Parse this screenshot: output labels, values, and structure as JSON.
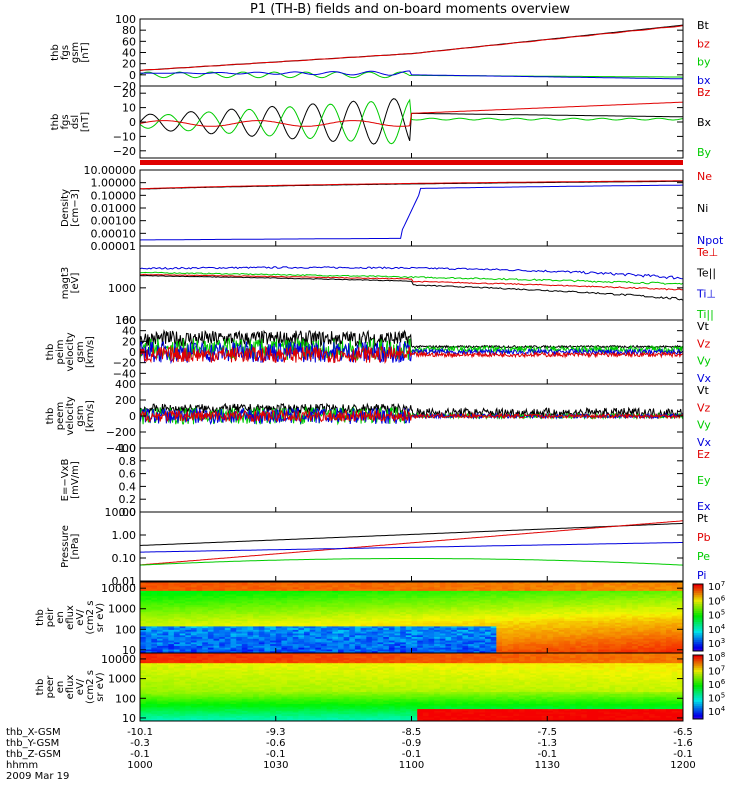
{
  "title": "P1 (TH-B) fields and on-board moments overview",
  "colors": {
    "black": "#000000",
    "red": "#e00000",
    "green": "#00cc00",
    "blue": "#0000dd"
  },
  "chart_data": {
    "type": "line",
    "x_time_labels": [
      "1000",
      "1030",
      "1100",
      "1130",
      "1200"
    ],
    "x_time_minutes": [
      0,
      30,
      60,
      90,
      120
    ],
    "ephemeris": [
      {
        "label": "thb_X-GSM",
        "values": [
          "-10.1",
          "-9.3",
          "-8.5",
          "-7.5",
          "-6.5"
        ]
      },
      {
        "label": "thb_Y-GSM",
        "values": [
          "-0.3",
          "-0.6",
          "-0.9",
          "-1.3",
          "-1.6"
        ]
      },
      {
        "label": "thb_Z-GSM",
        "values": [
          "-0.1",
          "-0.1",
          "-0.1",
          "-0.1",
          "-0.1"
        ]
      },
      {
        "label": "hhmm",
        "values": [
          "1000",
          "1030",
          "1100",
          "1130",
          "1200"
        ]
      }
    ],
    "date": "2009 Mar 19",
    "panels": [
      {
        "id": "fgs-gsm",
        "ylabel": [
          "thb",
          "fgs",
          "gsm",
          "[nT]"
        ],
        "yscale": "linear",
        "ylim": [
          -20,
          100
        ],
        "ticks": [
          {
            "v": 100,
            "t": "100"
          },
          {
            "v": 80,
            "t": "80"
          },
          {
            "v": 60,
            "t": "60"
          },
          {
            "v": 40,
            "t": "40"
          },
          {
            "v": 20,
            "t": "20"
          },
          {
            "v": 0,
            "t": "0"
          },
          {
            "v": -20,
            "t": "−20"
          }
        ],
        "legend": [
          {
            "t": "Bt",
            "c": "black"
          },
          {
            "t": "bz",
            "c": "red"
          },
          {
            "t": "by",
            "c": "green"
          },
          {
            "t": "bx",
            "c": "blue"
          }
        ]
      },
      {
        "id": "fgs-dsl",
        "ylabel": [
          "thb",
          "fgs",
          "dsl",
          "[nT]"
        ],
        "yscale": "linear",
        "ylim": [
          -25,
          25
        ],
        "ticks": [
          {
            "v": 20,
            "t": "20"
          },
          {
            "v": 10,
            "t": "10"
          },
          {
            "v": 0,
            "t": "0"
          },
          {
            "v": -10,
            "t": "−10"
          },
          {
            "v": -20,
            "t": "−20"
          }
        ],
        "legend": [
          {
            "t": "Bz",
            "c": "red"
          },
          {
            "t": "Bx",
            "c": "black"
          },
          {
            "t": "By",
            "c": "green"
          }
        ]
      },
      {
        "id": "density",
        "ylabel": [
          "Density",
          "[cm−3]"
        ],
        "yscale": "log",
        "ylim": [
          1e-05,
          10
        ],
        "ticks": [
          {
            "v": 10,
            "t": "10.00000"
          },
          {
            "v": 1,
            "t": "1.00000"
          },
          {
            "v": 0.1,
            "t": "0.10000"
          },
          {
            "v": 0.01,
            "t": "0.01000"
          },
          {
            "v": 0.001,
            "t": "0.00100"
          },
          {
            "v": 0.0001,
            "t": "0.00010"
          },
          {
            "v": 1e-05,
            "t": "0.00001"
          }
        ],
        "legend": [
          {
            "t": "Ne",
            "c": "red"
          },
          {
            "t": "Ni",
            "c": "black"
          },
          {
            "t": "Npot",
            "c": "blue"
          }
        ]
      },
      {
        "id": "temperature",
        "ylabel": [
          "magt3",
          "[eV]"
        ],
        "yscale": "log",
        "ylim": [
          100,
          20000
        ],
        "ticks": [
          {
            "v": 1000,
            "t": "1000"
          },
          {
            "v": 100,
            "t": "100"
          }
        ],
        "legend": [
          {
            "t": "Te⊥",
            "c": "red"
          },
          {
            "t": "Te||",
            "c": "black"
          },
          {
            "t": "Ti⊥",
            "c": "blue"
          },
          {
            "t": "Ti||",
            "c": "green"
          }
        ]
      },
      {
        "id": "peim-velocity",
        "ylabel": [
          "thb",
          "peim",
          "velocity",
          "gsm",
          "[km/s]"
        ],
        "yscale": "linear",
        "ylim": [
          -60,
          60
        ],
        "ticks": [
          {
            "v": 60,
            "t": "60"
          },
          {
            "v": 40,
            "t": "40"
          },
          {
            "v": 20,
            "t": "20"
          },
          {
            "v": 0,
            "t": "0"
          },
          {
            "v": -20,
            "t": "−20"
          },
          {
            "v": -40,
            "t": "−40"
          }
        ],
        "legend": [
          {
            "t": "Vt",
            "c": "black"
          },
          {
            "t": "Vz",
            "c": "red"
          },
          {
            "t": "Vy",
            "c": "green"
          },
          {
            "t": "Vx",
            "c": "blue"
          }
        ]
      },
      {
        "id": "peem-velocity",
        "ylabel": [
          "thb",
          "peem",
          "velocity",
          "gsm",
          "[km/s]"
        ],
        "yscale": "linear",
        "ylim": [
          -400,
          400
        ],
        "ticks": [
          {
            "v": 400,
            "t": "400"
          },
          {
            "v": 200,
            "t": "200"
          },
          {
            "v": 0,
            "t": "0"
          },
          {
            "v": -200,
            "t": "−200"
          },
          {
            "v": -400,
            "t": "−400"
          }
        ],
        "legend": [
          {
            "t": "Vt",
            "c": "black"
          },
          {
            "t": "Vz",
            "c": "red"
          },
          {
            "t": "Vy",
            "c": "green"
          },
          {
            "t": "Vx",
            "c": "blue"
          }
        ]
      },
      {
        "id": "efield",
        "ylabel": [
          "E=−VxB",
          "[mV/m]"
        ],
        "yscale": "linear",
        "ylim": [
          0,
          1
        ],
        "ticks": [
          {
            "v": 1,
            "t": "1.0"
          },
          {
            "v": 0.8,
            "t": "0.8"
          },
          {
            "v": 0.6,
            "t": "0.6"
          },
          {
            "v": 0.4,
            "t": "0.4"
          },
          {
            "v": 0.2,
            "t": "0.2"
          },
          {
            "v": 0,
            "t": "0.0"
          }
        ],
        "legend": [
          {
            "t": "Ez",
            "c": "red"
          },
          {
            "t": "Ey",
            "c": "green"
          },
          {
            "t": "Ex",
            "c": "blue"
          }
        ]
      },
      {
        "id": "pressure",
        "ylabel": [
          "Pressure",
          "[nPa]"
        ],
        "yscale": "log",
        "ylim": [
          0.01,
          10
        ],
        "ticks": [
          {
            "v": 10,
            "t": "10.00"
          },
          {
            "v": 1,
            "t": "1.00"
          },
          {
            "v": 0.1,
            "t": "0.10"
          },
          {
            "v": 0.01,
            "t": "0.01"
          }
        ],
        "legend": [
          {
            "t": "Pt",
            "c": "black"
          },
          {
            "t": "Pb",
            "c": "red"
          },
          {
            "t": "Pe",
            "c": "green"
          },
          {
            "t": "Pi",
            "c": "blue"
          }
        ]
      },
      {
        "id": "peir-spec",
        "ylabel": [
          "thb",
          "peir",
          "en",
          "eflux",
          "eV/",
          "(cm2 s",
          "sr eV)"
        ],
        "yscale": "log",
        "ylim": [
          7,
          20000
        ],
        "ticks": [
          {
            "v": 10000,
            "t": "10000"
          },
          {
            "v": 1000,
            "t": "1000"
          },
          {
            "v": 100,
            "t": "100"
          },
          {
            "v": 10,
            "t": "10"
          }
        ],
        "colorbar": [
          {
            "e": "7"
          },
          {
            "e": "6"
          },
          {
            "e": "5"
          },
          {
            "e": "4"
          },
          {
            "e": "3"
          }
        ]
      },
      {
        "id": "peer-spec",
        "ylabel": [
          "thb",
          "peer",
          "en",
          "eflux",
          "eV/",
          "(cm2 s",
          "sr eV)"
        ],
        "yscale": "log",
        "ylim": [
          7,
          20000
        ],
        "ticks": [
          {
            "v": 10000,
            "t": "10000"
          },
          {
            "v": 1000,
            "t": "1000"
          },
          {
            "v": 100,
            "t": "100"
          },
          {
            "v": 10,
            "t": "10"
          }
        ],
        "colorbar": [
          {
            "e": "8"
          },
          {
            "e": "7"
          },
          {
            "e": "6"
          },
          {
            "e": "5"
          },
          {
            "e": "4"
          }
        ]
      }
    ]
  }
}
